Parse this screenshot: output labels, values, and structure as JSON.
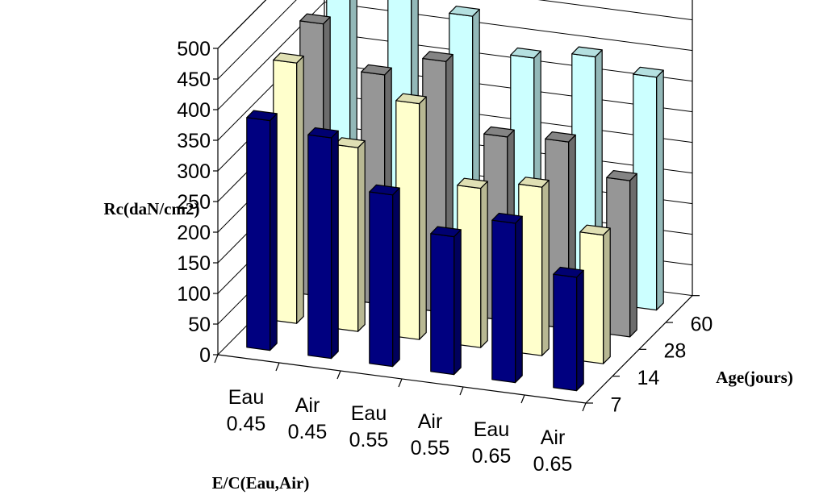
{
  "chart_data": {
    "type": "bar",
    "subtype": "3d-column",
    "ylabel": "Rc(daN/cm2)",
    "xlabel": "E/C(Eau,Air)",
    "zlabel": "Age(jours)",
    "yticks": [
      "0",
      "50",
      "100",
      "150",
      "200",
      "250",
      "300",
      "350",
      "400",
      "450",
      "500"
    ],
    "ylim": [
      0,
      500
    ],
    "grid": true,
    "categories": [
      [
        "Eau",
        "0.45"
      ],
      [
        "Air",
        "0.45"
      ],
      [
        "Eau",
        "0.55"
      ],
      [
        "Air",
        "0.55"
      ],
      [
        "Eau",
        "0.65"
      ],
      [
        "Air",
        "0.65"
      ]
    ],
    "series": [
      {
        "name": "7",
        "color": "#000080",
        "values": [
          375,
          360,
          280,
          225,
          260,
          185
        ]
      },
      {
        "name": "14",
        "color": "#FFFFCC",
        "values": [
          425,
          300,
          385,
          260,
          275,
          210
        ]
      },
      {
        "name": "28",
        "color": "#969696",
        "values": [
          445,
          375,
          410,
          300,
          305,
          255
        ]
      },
      {
        "name": "60",
        "color": "#CCFFFF",
        "values": [
          485,
          465,
          440,
          385,
          400,
          380
        ]
      }
    ]
  }
}
